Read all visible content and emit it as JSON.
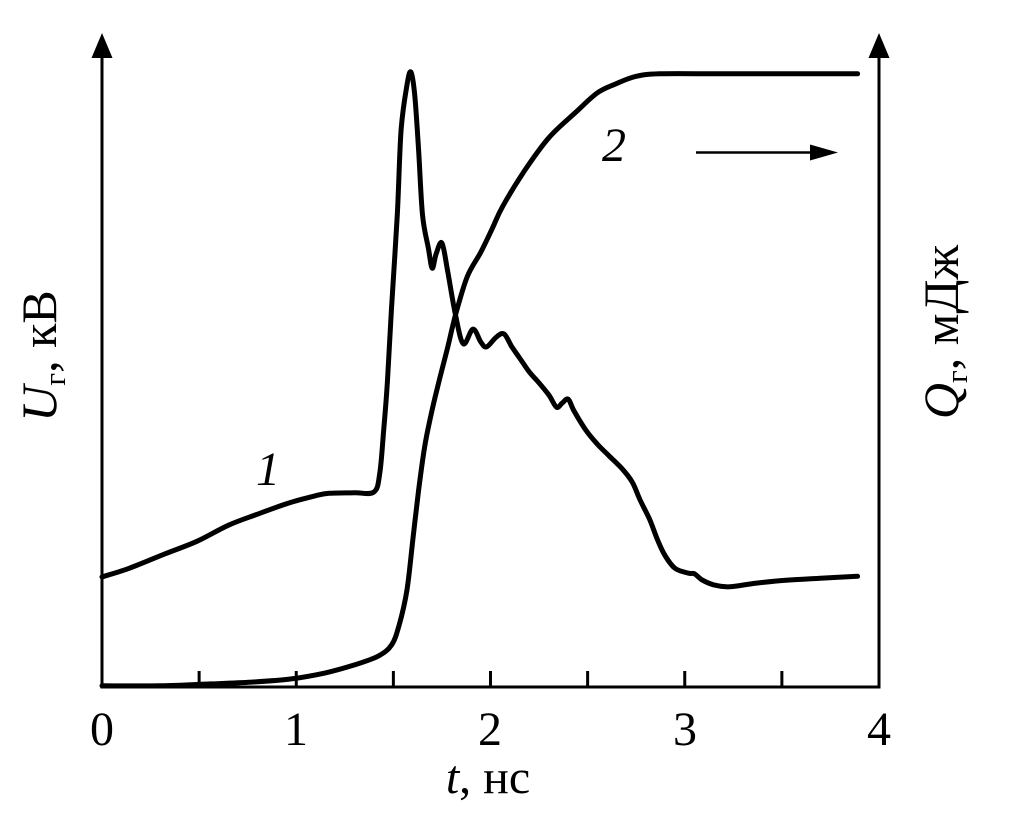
{
  "figure": {
    "x_axis_label": {
      "symbol": "t",
      "rest": ", нс"
    },
    "left_axis_label": {
      "symbol": "U",
      "sub": "г",
      "rest": ", кВ"
    },
    "right_axis_label": {
      "symbol": "Q",
      "sub": "г",
      "rest": ", мДж"
    },
    "curve_labels": {
      "curve1": "1",
      "curve2": "2"
    },
    "colors": {
      "ink": "#000000",
      "background": "#ffffff"
    }
  },
  "chart_data": {
    "type": "line",
    "title": "",
    "xlabel": "t, нс",
    "ylabel_left": "Uг, кВ",
    "ylabel_right": "Qг, мДж",
    "xlim": [
      0,
      4
    ],
    "x_tick_step_minor": 0.5,
    "x_ticks_minor": [
      0.5,
      1,
      1.5,
      2,
      2.5,
      3,
      3.5
    ],
    "x_ticks_labeled": [
      0,
      1,
      2,
      3,
      4
    ],
    "x_tick_labels": [
      "0",
      "1",
      "2",
      "3",
      "4"
    ],
    "y_axes": "no numeric ticks; both vertical axes are arrow axes with arbitrary units; curve y-values below are normalized 0–1 of plot height",
    "grid": false,
    "legend_position": "inline italic numbers near curves",
    "annotations": [
      {
        "type": "arrow",
        "near_label": "2",
        "direction": "right",
        "meaning": "curve 2 refers to right axis"
      }
    ],
    "series": [
      {
        "name": "1",
        "axis": "left",
        "quantity": "Uг, кВ (discharge gap voltage pulse)",
        "points": [
          [
            0.0,
            0.179
          ],
          [
            0.14,
            0.193
          ],
          [
            0.32,
            0.216
          ],
          [
            0.49,
            0.237
          ],
          [
            0.65,
            0.263
          ],
          [
            0.8,
            0.281
          ],
          [
            0.96,
            0.299
          ],
          [
            1.1,
            0.311
          ],
          [
            1.17,
            0.315
          ],
          [
            1.3,
            0.316
          ],
          [
            1.4,
            0.317
          ],
          [
            1.43,
            0.348
          ],
          [
            1.45,
            0.418
          ],
          [
            1.47,
            0.499
          ],
          [
            1.49,
            0.613
          ],
          [
            1.52,
            0.768
          ],
          [
            1.54,
            0.906
          ],
          [
            1.57,
            0.979
          ],
          [
            1.59,
            1.0
          ],
          [
            1.61,
            0.963
          ],
          [
            1.63,
            0.873
          ],
          [
            1.65,
            0.768
          ],
          [
            1.68,
            0.714
          ],
          [
            1.7,
            0.681
          ],
          [
            1.72,
            0.704
          ],
          [
            1.75,
            0.722
          ],
          [
            1.78,
            0.675
          ],
          [
            1.82,
            0.605
          ],
          [
            1.86,
            0.558
          ],
          [
            1.91,
            0.582
          ],
          [
            1.95,
            0.561
          ],
          [
            1.98,
            0.553
          ],
          [
            2.03,
            0.569
          ],
          [
            2.07,
            0.574
          ],
          [
            2.11,
            0.553
          ],
          [
            2.15,
            0.535
          ],
          [
            2.2,
            0.512
          ],
          [
            2.24,
            0.498
          ],
          [
            2.3,
            0.475
          ],
          [
            2.34,
            0.455
          ],
          [
            2.37,
            0.462
          ],
          [
            2.4,
            0.468
          ],
          [
            2.43,
            0.449
          ],
          [
            2.49,
            0.418
          ],
          [
            2.55,
            0.395
          ],
          [
            2.61,
            0.376
          ],
          [
            2.68,
            0.354
          ],
          [
            2.73,
            0.333
          ],
          [
            2.77,
            0.304
          ],
          [
            2.82,
            0.272
          ],
          [
            2.86,
            0.239
          ],
          [
            2.9,
            0.213
          ],
          [
            2.95,
            0.193
          ],
          [
            3.02,
            0.185
          ],
          [
            3.05,
            0.184
          ],
          [
            3.09,
            0.174
          ],
          [
            3.15,
            0.166
          ],
          [
            3.23,
            0.163
          ],
          [
            3.37,
            0.169
          ],
          [
            3.54,
            0.174
          ],
          [
            3.71,
            0.177
          ],
          [
            3.89,
            0.18
          ]
        ]
      },
      {
        "name": "2",
        "axis": "right",
        "quantity": "Qг, мДж (deposited energy, saturating)",
        "points": [
          [
            0.0,
            0.002
          ],
          [
            0.3,
            0.002
          ],
          [
            0.56,
            0.005
          ],
          [
            0.77,
            0.008
          ],
          [
            0.97,
            0.013
          ],
          [
            1.15,
            0.023
          ],
          [
            1.3,
            0.036
          ],
          [
            1.42,
            0.05
          ],
          [
            1.49,
            0.068
          ],
          [
            1.53,
            0.101
          ],
          [
            1.57,
            0.158
          ],
          [
            1.6,
            0.239
          ],
          [
            1.63,
            0.32
          ],
          [
            1.66,
            0.389
          ],
          [
            1.69,
            0.437
          ],
          [
            1.73,
            0.491
          ],
          [
            1.78,
            0.553
          ],
          [
            1.82,
            0.605
          ],
          [
            1.88,
            0.667
          ],
          [
            1.95,
            0.707
          ],
          [
            2.01,
            0.746
          ],
          [
            2.06,
            0.78
          ],
          [
            2.17,
            0.837
          ],
          [
            2.3,
            0.893
          ],
          [
            2.44,
            0.935
          ],
          [
            2.55,
            0.966
          ],
          [
            2.64,
            0.98
          ],
          [
            2.75,
            0.993
          ],
          [
            2.87,
            0.997
          ],
          [
            3.18,
            0.997
          ],
          [
            3.54,
            0.997
          ],
          [
            3.89,
            0.997
          ]
        ]
      }
    ]
  }
}
